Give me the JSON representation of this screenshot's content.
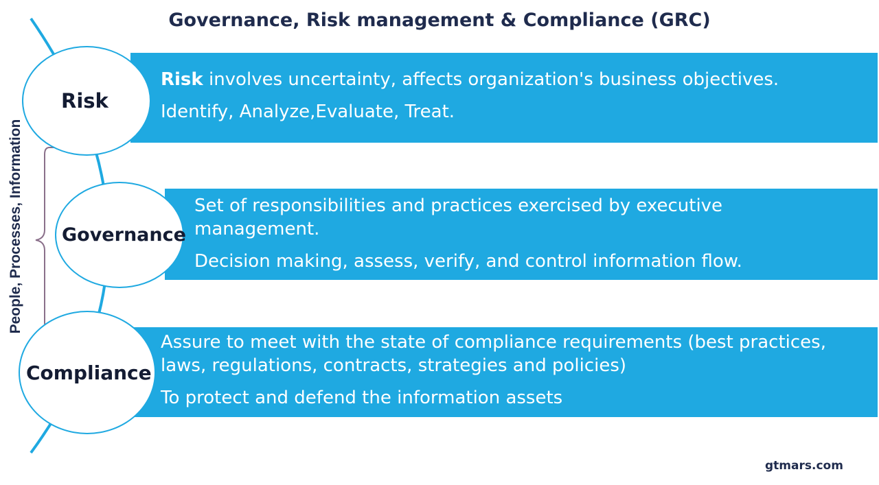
{
  "title": "Governance, Risk management & Compliance (GRC)",
  "side_label": "People, Processes, Information",
  "items": [
    {
      "name": "Risk",
      "lines": {
        "line1_bold": "Risk",
        "line1_rest": " involves uncertainty, affects organization's business objectives.",
        "line2": "Identify, Analyze,Evaluate, Treat."
      }
    },
    {
      "name": "Governance",
      "lines": {
        "line1": "Set of responsibilities and practices exercised by executive",
        "line1b": "management.",
        "line2": "Decision making, assess, verify, and control information flow."
      }
    },
    {
      "name": "Compliance",
      "lines": {
        "line1": "Assure to meet with the state of compliance requirements (best practices,",
        "line1b": "laws, regulations, contracts, strategies and policies)",
        "line2": "To protect and defend the information assets"
      }
    }
  ],
  "footer": "gtmars.com",
  "colors": {
    "band": "#1fa9e1",
    "title": "#1f2b4d",
    "circle_text": "#141c33",
    "bracket": "#8a6f8a"
  }
}
